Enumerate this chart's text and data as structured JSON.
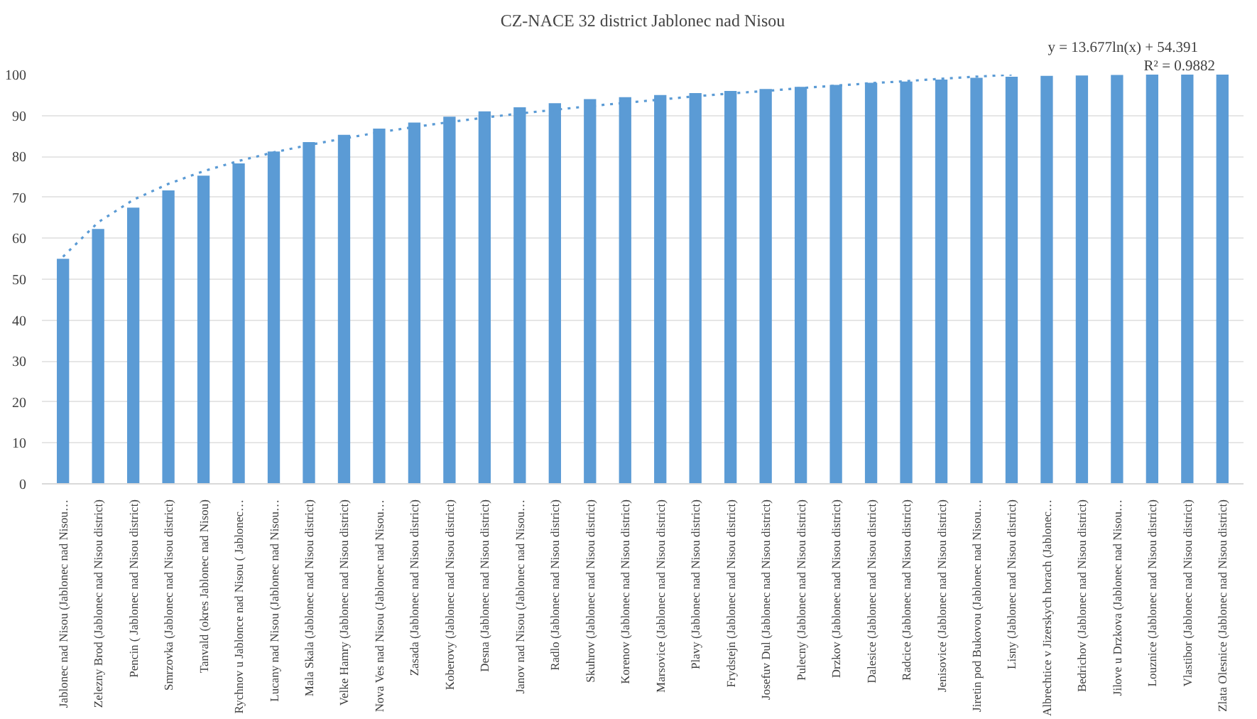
{
  "chart_data": {
    "type": "bar",
    "title": "CZ-NACE 32 district Jablonec nad Nisou",
    "categories": [
      "Jablonec nad Nisou (Jablonec nad Nisou…",
      "Zelezny Brod (Jablonec nad Nisou district)",
      "Pencin ( Jablonec nad Nisou district)",
      "Smrzovka (Jablonec nad Nisou district)",
      "Tanvald (okres Jablonec nad Nisou)",
      "Rychnov u Jablonce nad Nisou ( Jablonec…",
      "Lucany nad Nisou (Jablonec nad Nisou…",
      "Mala Skala (Jablonec nad Nisou district)",
      "Velke Hamry (Jablonec nad Nisou district)",
      "Nova Ves nad Nisou (Jablonec nad Nisou…",
      "Zasada (Jablonec nad Nisou district)",
      "Koberovy (Jablonec nad Nisou district)",
      "Desna (Jablonec nad Nisou district)",
      "Janov nad Nisou (Jablonec nad Nisou…",
      "Radlo (Jablonec nad Nisou district)",
      "Skuhrov (Jablonec nad Nisou district)",
      "Korenov (Jablonec nad Nisou district)",
      "Marsovice (Jablonec nad Nisou district)",
      "Plavy (Jablonec nad Nisou district)",
      "Frydstejn (Jablonec nad Nisou district)",
      "Josefuv Dul (Jablonec nad Nisou district)",
      "Pulecny (Jablonec nad Nisou district)",
      "Drzkov (Jablonec nad Nisou district)",
      "Dalesice (Jablonec nad Nisou district)",
      "Radcice (Jablonec nad Nisou district)",
      "Jenisovice (Jablonec nad Nisou district)",
      "Jiretin pod Bukovou (Jablonec nad Nisou…",
      "Lisny (Jablonec nad Nisou district)",
      "Albrechtice v Jizerskych horach (Jablonec…",
      "Bedrichov (Jablonec nad Nisou district)",
      "Jilove u Drzkova (Jablonec nad Nisou…",
      "Louznice (Jablonec nad Nisou district)",
      "Vlastibor (Jablonec nad Nisou district)",
      "Zlata Olesnice (Jablonec nad Nisou district)"
    ],
    "series": [
      {
        "color": "#5b9bd5",
        "values": [
          55,
          62.3,
          67.5,
          71.7,
          75.3,
          78.3,
          81.2,
          83.5,
          85.3,
          86.8,
          88.3,
          89.7,
          91,
          92,
          93,
          94,
          94.5,
          95,
          95.5,
          96,
          96.5,
          97,
          97.5,
          98,
          98.3,
          98.8,
          99.2,
          99.5,
          99.7,
          99.8,
          99.9,
          100,
          100,
          100
        ]
      },
      {
        "type": "line",
        "color": "#5b9bd5",
        "line_style": "dotted",
        "values": [
          55.5,
          63.9,
          69.4,
          73.3,
          76.4,
          78.9,
          81.0,
          82.8,
          84.4,
          85.9,
          87.2,
          88.4,
          89.5,
          90.5,
          91.4,
          92.3,
          93.1,
          93.9,
          94.7,
          95.4,
          96.0,
          96.7,
          97.3,
          97.9,
          98.4,
          99.0,
          99.5,
          100.0,
          null,
          null,
          null,
          null,
          null,
          null
        ]
      }
    ],
    "ylim": [
      0,
      100
    ],
    "yticks": [
      0,
      10,
      20,
      30,
      40,
      50,
      60,
      70,
      80,
      90,
      100
    ],
    "grid": "y",
    "annotations": [
      "y = 13.677ln(x) + 54.391",
      "R² = 0.9882"
    ]
  }
}
